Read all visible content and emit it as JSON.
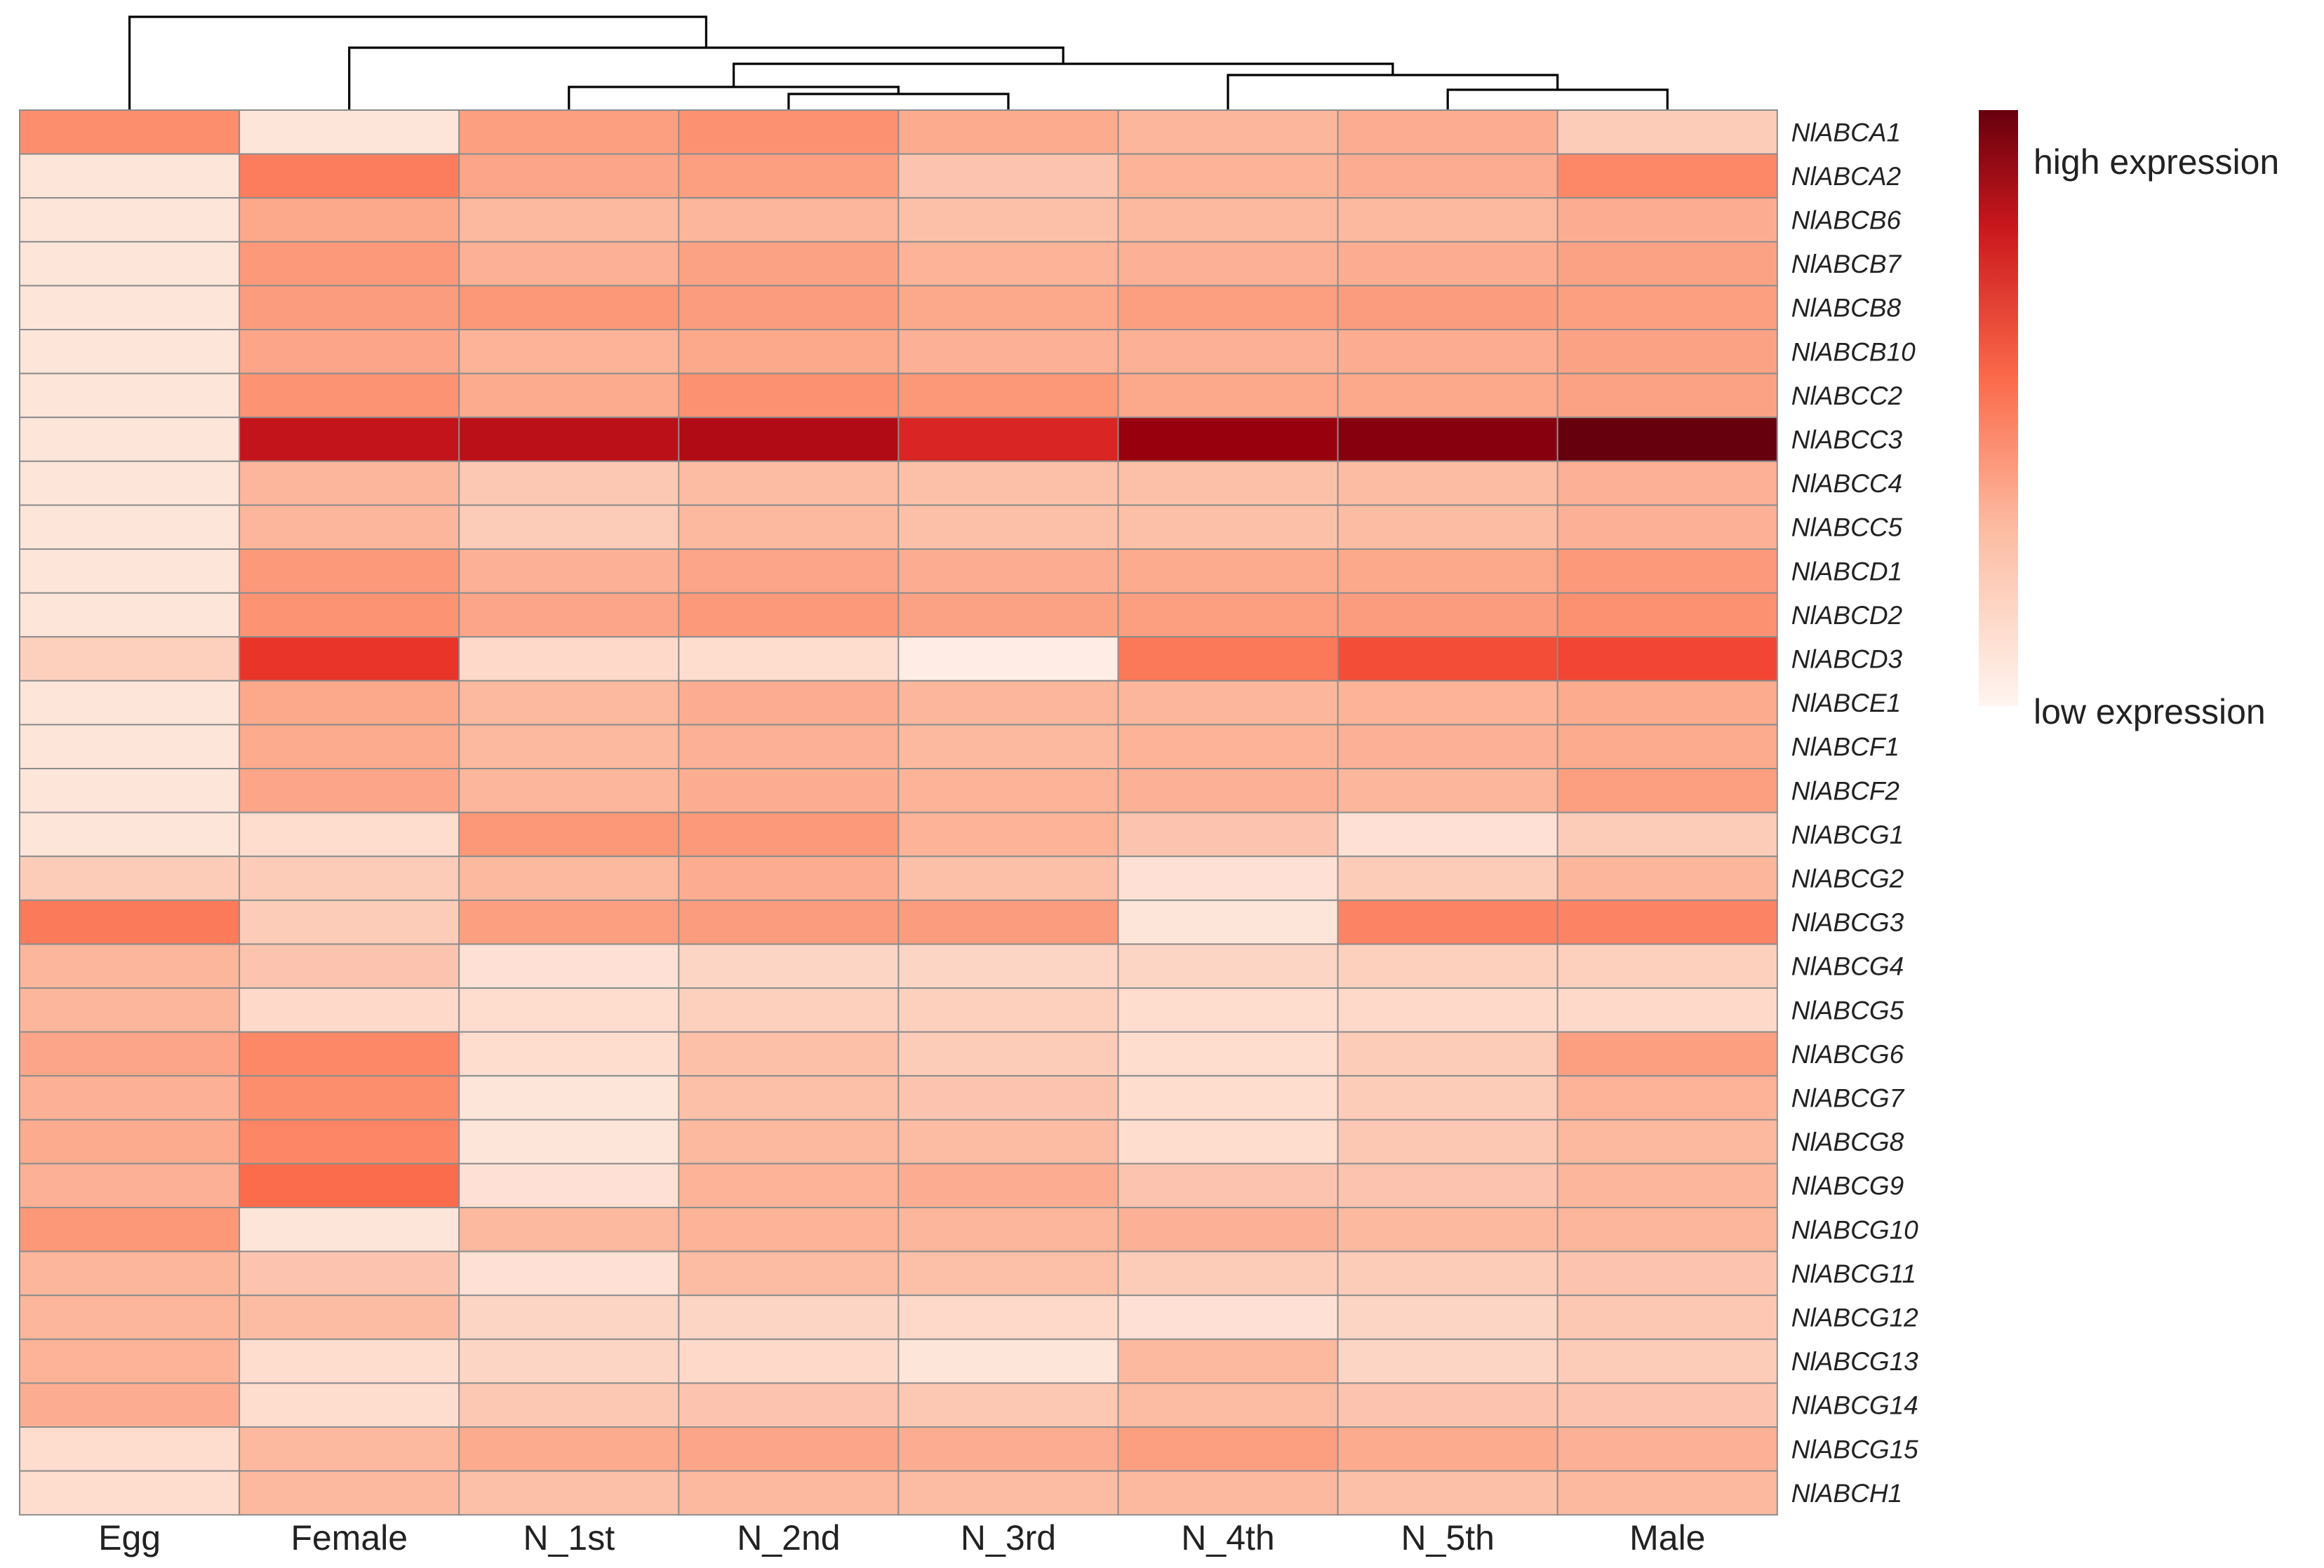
{
  "chart_data": {
    "type": "heatmap",
    "title": "",
    "columns": [
      "Egg",
      "Female",
      "N_1st",
      "N_2nd",
      "N_3rd",
      "N_4th",
      "N_5th",
      "Male"
    ],
    "rows": [
      "NlABCA1",
      "NlABCA2",
      "NlABCB6",
      "NlABCB7",
      "NlABCB8",
      "NlABCB10",
      "NlABCC2",
      "NlABCC3",
      "NlABCC4",
      "NlABCC5",
      "NlABCD1",
      "NlABCD2",
      "NlABCD3",
      "NlABCE1",
      "NlABCF1",
      "NlABCF2",
      "NlABCG1",
      "NlABCG2",
      "NlABCG3",
      "NlABCG4",
      "NlABCG5",
      "NlABCG6",
      "NlABCG7",
      "NlABCG8",
      "NlABCG9",
      "NlABCG10",
      "NlABCG11",
      "NlABCG12",
      "NlABCG13",
      "NlABCG14",
      "NlABCG15",
      "NlABCH1"
    ],
    "values": [
      [
        0.3,
        0.04,
        0.24,
        0.29,
        0.2,
        0.16,
        0.19,
        0.1
      ],
      [
        0.04,
        0.36,
        0.22,
        0.24,
        0.12,
        0.17,
        0.19,
        0.32
      ],
      [
        0.04,
        0.21,
        0.15,
        0.16,
        0.13,
        0.15,
        0.15,
        0.19
      ],
      [
        0.04,
        0.26,
        0.18,
        0.23,
        0.17,
        0.18,
        0.19,
        0.23
      ],
      [
        0.04,
        0.25,
        0.27,
        0.25,
        0.21,
        0.24,
        0.25,
        0.24
      ],
      [
        0.04,
        0.22,
        0.17,
        0.21,
        0.18,
        0.18,
        0.19,
        0.23
      ],
      [
        0.04,
        0.28,
        0.2,
        0.29,
        0.27,
        0.21,
        0.21,
        0.23
      ],
      [
        0.04,
        0.74,
        0.76,
        0.79,
        0.66,
        0.86,
        0.91,
        1.0
      ],
      [
        0.04,
        0.16,
        0.11,
        0.14,
        0.13,
        0.13,
        0.14,
        0.18
      ],
      [
        0.04,
        0.16,
        0.1,
        0.15,
        0.13,
        0.13,
        0.14,
        0.18
      ],
      [
        0.04,
        0.26,
        0.18,
        0.22,
        0.19,
        0.2,
        0.21,
        0.26
      ],
      [
        0.04,
        0.28,
        0.22,
        0.26,
        0.23,
        0.24,
        0.25,
        0.29
      ],
      [
        0.09,
        0.6,
        0.07,
        0.06,
        0.02,
        0.38,
        0.52,
        0.54
      ],
      [
        0.04,
        0.21,
        0.15,
        0.19,
        0.16,
        0.16,
        0.17,
        0.2
      ],
      [
        0.04,
        0.2,
        0.15,
        0.18,
        0.15,
        0.17,
        0.18,
        0.2
      ],
      [
        0.04,
        0.22,
        0.16,
        0.19,
        0.17,
        0.18,
        0.16,
        0.24
      ],
      [
        0.04,
        0.06,
        0.27,
        0.26,
        0.17,
        0.12,
        0.05,
        0.1
      ],
      [
        0.1,
        0.1,
        0.15,
        0.19,
        0.13,
        0.05,
        0.1,
        0.16
      ],
      [
        0.37,
        0.1,
        0.24,
        0.25,
        0.25,
        0.04,
        0.34,
        0.34
      ],
      [
        0.16,
        0.12,
        0.05,
        0.08,
        0.08,
        0.08,
        0.09,
        0.09
      ],
      [
        0.16,
        0.07,
        0.06,
        0.09,
        0.09,
        0.06,
        0.07,
        0.07
      ],
      [
        0.22,
        0.32,
        0.06,
        0.13,
        0.1,
        0.06,
        0.1,
        0.24
      ],
      [
        0.18,
        0.3,
        0.04,
        0.13,
        0.12,
        0.06,
        0.1,
        0.17
      ],
      [
        0.2,
        0.33,
        0.04,
        0.15,
        0.14,
        0.06,
        0.11,
        0.15
      ],
      [
        0.18,
        0.42,
        0.05,
        0.17,
        0.19,
        0.12,
        0.12,
        0.16
      ],
      [
        0.27,
        0.04,
        0.15,
        0.17,
        0.16,
        0.18,
        0.15,
        0.16
      ],
      [
        0.16,
        0.12,
        0.05,
        0.14,
        0.13,
        0.1,
        0.1,
        0.12
      ],
      [
        0.16,
        0.14,
        0.08,
        0.08,
        0.07,
        0.05,
        0.08,
        0.11
      ],
      [
        0.17,
        0.06,
        0.08,
        0.07,
        0.04,
        0.15,
        0.08,
        0.1
      ],
      [
        0.19,
        0.06,
        0.11,
        0.12,
        0.11,
        0.14,
        0.12,
        0.12
      ],
      [
        0.06,
        0.15,
        0.2,
        0.22,
        0.19,
        0.24,
        0.2,
        0.18
      ],
      [
        0.06,
        0.15,
        0.13,
        0.15,
        0.14,
        0.15,
        0.13,
        0.15
      ]
    ],
    "legend": {
      "high_label": "high expression",
      "low_label": "low expression",
      "colors": [
        "#fff5f0",
        "#fcbba1",
        "#fc9272",
        "#fb6a4a",
        "#ef3b2c",
        "#cb181d",
        "#99000d",
        "#67000d"
      ]
    },
    "column_dendrogram": "((Egg,(Female,((N_1st,(N_2nd,N_3rd)),(N_4th,(N_5th,Male))))))"
  }
}
